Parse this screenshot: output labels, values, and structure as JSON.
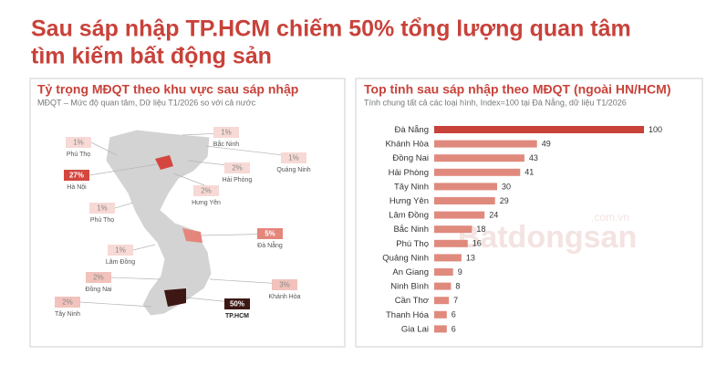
{
  "title_lines": [
    "Sau sáp nhập TP.HCM chiếm 50% tổng lượng quan tâm",
    "tìm kiếm bất động sản"
  ],
  "watermark": {
    "text": "Batdongsan",
    "domain": ".com.vn"
  },
  "map": {
    "title": "Tỷ trọng MĐQT theo khu vực sau sáp nhập",
    "subtitle": "MĐQT – Mức độ quan tâm, Dữ liệu T1/2026 so với cả nước",
    "regions": [
      {
        "name": "Phú Thọ",
        "value": 1,
        "value_label": "1%",
        "color": "#f7d9d5"
      },
      {
        "name": "Bắc Ninh",
        "value": 1,
        "value_label": "1%",
        "color": "#f7d9d5"
      },
      {
        "name": "Quảng Ninh",
        "value": 1,
        "value_label": "1%",
        "color": "#f7d9d5"
      },
      {
        "name": "Hà Nội",
        "value": 27,
        "value_label": "27%",
        "color": "#d4473f"
      },
      {
        "name": "Hải Phòng",
        "value": 2,
        "value_label": "2%",
        "color": "#f7d9d5"
      },
      {
        "name": "Hưng Yên",
        "value": 2,
        "value_label": "2%",
        "color": "#f7d9d5"
      },
      {
        "name": "Phú Thọ",
        "value": 1,
        "value_label": "1%",
        "color": "#f7d9d5"
      },
      {
        "name": "Đà Nẵng",
        "value": 5,
        "value_label": "5%",
        "color": "#e4867b"
      },
      {
        "name": "Lâm Đồng",
        "value": 1,
        "value_label": "1%",
        "color": "#f7d9d5"
      },
      {
        "name": "Đồng Nai",
        "value": 2,
        "value_label": "2%",
        "color": "#f2c2bc"
      },
      {
        "name": "Khánh Hòa",
        "value": 3,
        "value_label": "3%",
        "color": "#f2c2bc"
      },
      {
        "name": "Tây Ninh",
        "value": 2,
        "value_label": "2%",
        "color": "#f2c2bc"
      },
      {
        "name": "TP.HCM",
        "value": 50,
        "value_label": "50%",
        "color": "#3d1714"
      }
    ]
  },
  "chart_data": {
    "type": "bar",
    "orientation": "horizontal",
    "title": "Top tỉnh sau sáp nhập theo MĐQT (ngoài HN/HCM)",
    "subtitle": "Tính chung tất cả các loại hình, Index=100 tại Đà Nẵng, dữ liệu T1/2026",
    "categories": [
      "Đà Nẵng",
      "Khánh Hòa",
      "Đồng Nai",
      "Hải Phòng",
      "Tây Ninh",
      "Hưng Yên",
      "Lâm Đồng",
      "Bắc Ninh",
      "Phú Thọ",
      "Quảng Ninh",
      "An Giang",
      "Ninh Bình",
      "Cần Thơ",
      "Thanh Hóa",
      "Gia Lai"
    ],
    "values": [
      100,
      49,
      43,
      41,
      30,
      29,
      24,
      18,
      16,
      13,
      9,
      8,
      7,
      6,
      6
    ],
    "colors": [
      "#c8423a",
      "#e08a7e",
      "#e08a7e",
      "#e08a7e",
      "#e08a7e",
      "#e08a7e",
      "#e08a7e",
      "#e08a7e",
      "#e08a7e",
      "#e08a7e",
      "#e08a7e",
      "#e08a7e",
      "#e08a7e",
      "#e08a7e",
      "#e08a7e"
    ],
    "xlim": [
      0,
      100
    ]
  }
}
